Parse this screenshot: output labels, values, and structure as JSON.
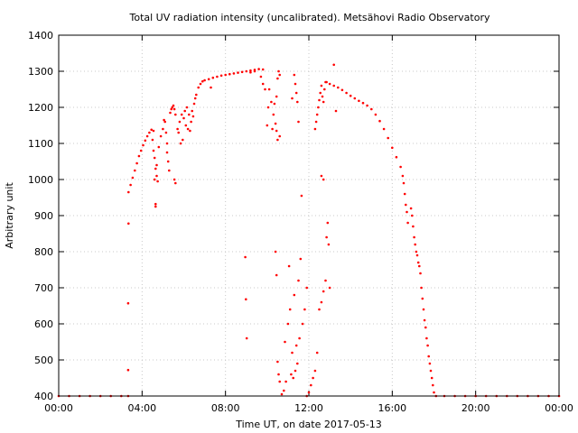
{
  "chart_data": {
    "type": "scatter",
    "title": "Total UV radiation intensity (uncalibrated). Metsähovi Radio Observatory",
    "xlabel": "Time UT, on date 2017-05-13",
    "ylabel": "Arbitrary unit",
    "xlim": [
      0,
      24
    ],
    "ylim": [
      400,
      1400
    ],
    "x_unit": "hours UT",
    "x_ticks": [
      {
        "value": 0,
        "label": "00:00"
      },
      {
        "value": 4,
        "label": "04:00"
      },
      {
        "value": 8,
        "label": "08:00"
      },
      {
        "value": 12,
        "label": "12:00"
      },
      {
        "value": 16,
        "label": "16:00"
      },
      {
        "value": 20,
        "label": "20:00"
      },
      {
        "value": 24,
        "label": "00:00"
      }
    ],
    "y_ticks": [
      400,
      500,
      600,
      700,
      800,
      900,
      1000,
      1100,
      1200,
      1300,
      1400
    ],
    "grid": true,
    "legend": "none",
    "series_color": "#ff0000",
    "series": [
      {
        "marker": "point",
        "color": "#ff0000",
        "points": [
          [
            0.0,
            400
          ],
          [
            0.5,
            400
          ],
          [
            1.0,
            400
          ],
          [
            1.5,
            400
          ],
          [
            2.0,
            400
          ],
          [
            2.5,
            400
          ],
          [
            3.0,
            400
          ],
          [
            3.33,
            400
          ],
          [
            3.33,
            472
          ],
          [
            3.33,
            657
          ],
          [
            3.35,
            878
          ],
          [
            3.35,
            965
          ],
          [
            3.45,
            985
          ],
          [
            3.55,
            1005
          ],
          [
            3.65,
            1025
          ],
          [
            3.75,
            1045
          ],
          [
            3.85,
            1065
          ],
          [
            3.95,
            1080
          ],
          [
            4.05,
            1095
          ],
          [
            4.15,
            1108
          ],
          [
            4.25,
            1120
          ],
          [
            4.35,
            1130
          ],
          [
            4.45,
            1138
          ],
          [
            4.55,
            1135
          ],
          [
            4.5,
            1110
          ],
          [
            4.55,
            1080
          ],
          [
            4.6,
            1060
          ],
          [
            4.65,
            1030
          ],
          [
            4.7,
            1010
          ],
          [
            4.75,
            995
          ],
          [
            4.6,
            1000
          ],
          [
            4.7,
            1040
          ],
          [
            4.65,
            932
          ],
          [
            4.65,
            925
          ],
          [
            4.8,
            1090
          ],
          [
            4.9,
            1120
          ],
          [
            5.0,
            1140
          ],
          [
            5.05,
            1165
          ],
          [
            5.1,
            1160
          ],
          [
            5.15,
            1130
          ],
          [
            5.2,
            1075
          ],
          [
            5.25,
            1050
          ],
          [
            5.3,
            1025
          ],
          [
            5.2,
            1100
          ],
          [
            5.35,
            1185
          ],
          [
            5.4,
            1195
          ],
          [
            5.45,
            1200
          ],
          [
            5.5,
            1205
          ],
          [
            5.55,
            1195
          ],
          [
            5.6,
            1180
          ],
          [
            5.55,
            1000
          ],
          [
            5.6,
            990
          ],
          [
            5.7,
            1140
          ],
          [
            5.75,
            1130
          ],
          [
            5.8,
            1160
          ],
          [
            5.85,
            1100
          ],
          [
            5.9,
            1180
          ],
          [
            5.95,
            1110
          ],
          [
            6.0,
            1170
          ],
          [
            6.05,
            1190
          ],
          [
            6.1,
            1150
          ],
          [
            6.15,
            1200
          ],
          [
            6.2,
            1140
          ],
          [
            6.25,
            1180
          ],
          [
            6.3,
            1135
          ],
          [
            6.35,
            1160
          ],
          [
            6.4,
            1190
          ],
          [
            6.45,
            1175
          ],
          [
            6.5,
            1210
          ],
          [
            6.55,
            1225
          ],
          [
            6.6,
            1235
          ],
          [
            6.7,
            1255
          ],
          [
            6.8,
            1265
          ],
          [
            6.9,
            1272
          ],
          [
            7.0,
            1275
          ],
          [
            7.2,
            1278
          ],
          [
            7.4,
            1282
          ],
          [
            7.6,
            1285
          ],
          [
            7.8,
            1288
          ],
          [
            8.0,
            1290
          ],
          [
            8.2,
            1292
          ],
          [
            8.4,
            1294
          ],
          [
            8.6,
            1296
          ],
          [
            8.8,
            1298
          ],
          [
            9.0,
            1300
          ],
          [
            9.2,
            1302
          ],
          [
            9.4,
            1304
          ],
          [
            9.6,
            1306
          ],
          [
            9.8,
            1305
          ],
          [
            7.3,
            1255
          ],
          [
            9.2,
            1297
          ],
          [
            9.4,
            1300
          ],
          [
            8.95,
            785
          ],
          [
            8.98,
            668
          ],
          [
            9.02,
            560
          ],
          [
            9.7,
            1285
          ],
          [
            9.8,
            1265
          ],
          [
            9.9,
            1250
          ],
          [
            10.0,
            1150
          ],
          [
            10.05,
            1200
          ],
          [
            10.1,
            1250
          ],
          [
            10.2,
            1215
          ],
          [
            10.25,
            1140
          ],
          [
            10.3,
            1180
          ],
          [
            10.35,
            1210
          ],
          [
            10.45,
            1230
          ],
          [
            10.5,
            1280
          ],
          [
            10.55,
            1300
          ],
          [
            10.6,
            1290
          ],
          [
            10.4,
            1155
          ],
          [
            10.45,
            1135
          ],
          [
            10.5,
            1110
          ],
          [
            10.6,
            1120
          ],
          [
            10.4,
            800
          ],
          [
            10.45,
            735
          ],
          [
            10.5,
            495
          ],
          [
            10.55,
            460
          ],
          [
            10.6,
            440
          ],
          [
            10.7,
            405
          ],
          [
            10.8,
            415
          ],
          [
            10.9,
            440
          ],
          [
            10.85,
            550
          ],
          [
            11.0,
            600
          ],
          [
            11.1,
            640
          ],
          [
            11.3,
            680
          ],
          [
            11.5,
            720
          ],
          [
            11.6,
            780
          ],
          [
            11.05,
            760
          ],
          [
            11.15,
            460
          ],
          [
            11.25,
            450
          ],
          [
            11.35,
            470
          ],
          [
            11.45,
            490
          ],
          [
            11.2,
            520
          ],
          [
            11.4,
            540
          ],
          [
            11.55,
            560
          ],
          [
            11.7,
            600
          ],
          [
            11.8,
            640
          ],
          [
            11.9,
            700
          ],
          [
            11.2,
            1225
          ],
          [
            11.3,
            1290
          ],
          [
            11.35,
            1265
          ],
          [
            11.4,
            1240
          ],
          [
            11.45,
            1215
          ],
          [
            11.5,
            1160
          ],
          [
            11.65,
            955
          ],
          [
            11.9,
            400
          ],
          [
            12.0,
            410
          ],
          [
            12.1,
            430
          ],
          [
            12.2,
            450
          ],
          [
            12.3,
            470
          ],
          [
            12.4,
            520
          ],
          [
            12.5,
            640
          ],
          [
            12.6,
            660
          ],
          [
            12.7,
            690
          ],
          [
            12.8,
            720
          ],
          [
            12.85,
            840
          ],
          [
            12.9,
            880
          ],
          [
            12.95,
            820
          ],
          [
            13.0,
            700
          ],
          [
            12.3,
            1140
          ],
          [
            12.35,
            1160
          ],
          [
            12.4,
            1180
          ],
          [
            12.45,
            1200
          ],
          [
            12.5,
            1220
          ],
          [
            12.55,
            1240
          ],
          [
            12.6,
            1260
          ],
          [
            12.65,
            1230
          ],
          [
            12.7,
            1215
          ],
          [
            12.75,
            1250
          ],
          [
            12.8,
            1270
          ],
          [
            12.6,
            1010
          ],
          [
            12.7,
            1000
          ],
          [
            12.85,
            1270
          ],
          [
            13.0,
            1265
          ],
          [
            13.2,
            1260
          ],
          [
            13.4,
            1255
          ],
          [
            13.6,
            1248
          ],
          [
            13.8,
            1240
          ],
          [
            14.0,
            1232
          ],
          [
            14.2,
            1225
          ],
          [
            14.4,
            1218
          ],
          [
            14.6,
            1212
          ],
          [
            14.8,
            1205
          ],
          [
            15.0,
            1195
          ],
          [
            15.2,
            1180
          ],
          [
            15.4,
            1162
          ],
          [
            15.6,
            1140
          ],
          [
            15.8,
            1115
          ],
          [
            16.0,
            1088
          ],
          [
            16.2,
            1062
          ],
          [
            16.4,
            1035
          ],
          [
            13.2,
            1318
          ],
          [
            13.3,
            1190
          ],
          [
            16.5,
            1010
          ],
          [
            16.55,
            990
          ],
          [
            16.6,
            960
          ],
          [
            16.65,
            930
          ],
          [
            16.7,
            910
          ],
          [
            16.75,
            880
          ],
          [
            16.9,
            920
          ],
          [
            16.95,
            900
          ],
          [
            17.0,
            870
          ],
          [
            17.05,
            840
          ],
          [
            17.1,
            820
          ],
          [
            17.15,
            800
          ],
          [
            17.2,
            790
          ],
          [
            17.25,
            770
          ],
          [
            17.3,
            760
          ],
          [
            17.35,
            740
          ],
          [
            17.4,
            700
          ],
          [
            17.45,
            670
          ],
          [
            17.5,
            640
          ],
          [
            17.55,
            610
          ],
          [
            17.6,
            590
          ],
          [
            17.65,
            560
          ],
          [
            17.7,
            540
          ],
          [
            17.75,
            510
          ],
          [
            17.8,
            490
          ],
          [
            17.85,
            470
          ],
          [
            17.9,
            450
          ],
          [
            17.95,
            430
          ],
          [
            18.0,
            410
          ],
          [
            18.1,
            400
          ],
          [
            18.5,
            400
          ],
          [
            19.0,
            400
          ],
          [
            19.5,
            400
          ],
          [
            20.0,
            400
          ],
          [
            20.5,
            400
          ],
          [
            21.0,
            400
          ],
          [
            21.5,
            400
          ],
          [
            22.0,
            400
          ],
          [
            22.5,
            400
          ],
          [
            23.0,
            400
          ],
          [
            23.5,
            400
          ],
          [
            24.0,
            400
          ]
        ]
      }
    ]
  }
}
